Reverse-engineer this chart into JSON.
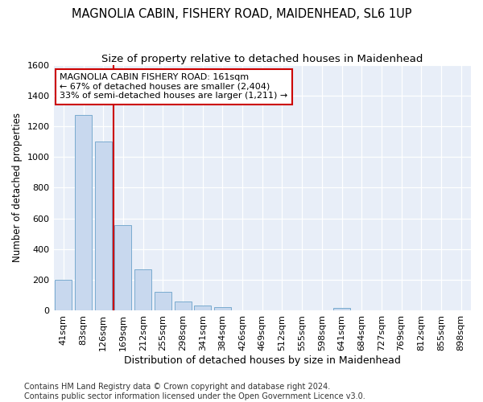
{
  "title": "MAGNOLIA CABIN, FISHERY ROAD, MAIDENHEAD, SL6 1UP",
  "subtitle": "Size of property relative to detached houses in Maidenhead",
  "xlabel": "Distribution of detached houses by size in Maidenhead",
  "ylabel": "Number of detached properties",
  "categories": [
    "41sqm",
    "83sqm",
    "126sqm",
    "169sqm",
    "212sqm",
    "255sqm",
    "298sqm",
    "341sqm",
    "384sqm",
    "426sqm",
    "469sqm",
    "512sqm",
    "555sqm",
    "598sqm",
    "641sqm",
    "684sqm",
    "727sqm",
    "769sqm",
    "812sqm",
    "855sqm",
    "898sqm"
  ],
  "values": [
    200,
    1275,
    1100,
    555,
    270,
    125,
    60,
    35,
    25,
    0,
    0,
    0,
    0,
    0,
    18,
    0,
    0,
    0,
    0,
    0,
    0
  ],
  "bar_color": "#c8d8ee",
  "bar_edge_color": "#7aabcf",
  "vline_color": "#cc0000",
  "annotation_text": "MAGNOLIA CABIN FISHERY ROAD: 161sqm\n← 67% of detached houses are smaller (2,404)\n33% of semi-detached houses are larger (1,211) →",
  "annotation_box_color": "#cc0000",
  "ylim": [
    0,
    1600
  ],
  "yticks": [
    0,
    200,
    400,
    600,
    800,
    1000,
    1200,
    1400,
    1600
  ],
  "bg_color": "#e8eef8",
  "grid_color": "#ffffff",
  "footer": "Contains HM Land Registry data © Crown copyright and database right 2024.\nContains public sector information licensed under the Open Government Licence v3.0.",
  "title_fontsize": 10.5,
  "subtitle_fontsize": 9.5,
  "xlabel_fontsize": 9,
  "ylabel_fontsize": 8.5,
  "tick_fontsize": 8,
  "ann_fontsize": 8,
  "footer_fontsize": 7
}
